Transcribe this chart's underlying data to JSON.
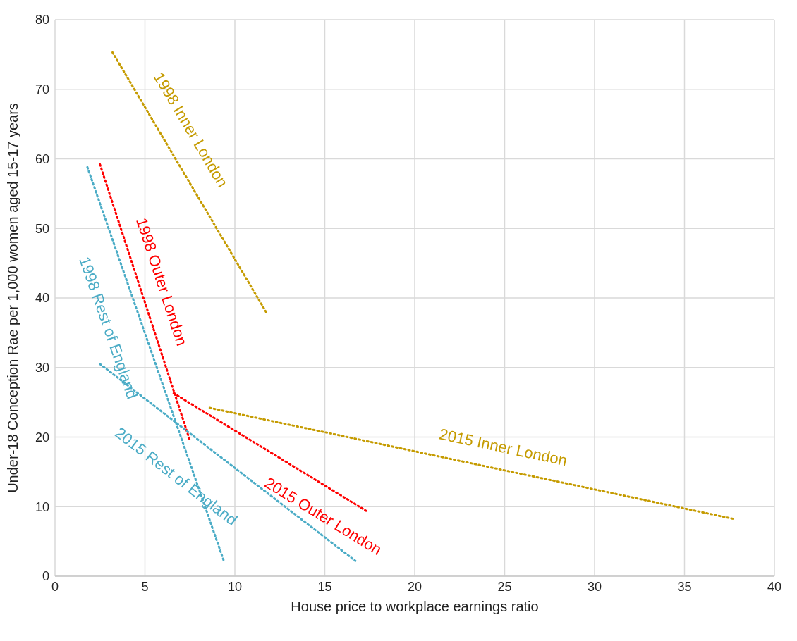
{
  "chart_data": {
    "type": "line",
    "xlabel": "House price to workplace earnings ratio",
    "ylabel": "Under-18 Conception Rae per 1,000 women aged 15-17 years",
    "xlim": [
      0,
      40
    ],
    "xticks": [
      0,
      5,
      10,
      15,
      20,
      25,
      30,
      35,
      40
    ],
    "ylim": [
      0,
      80
    ],
    "yticks": [
      0,
      10,
      20,
      30,
      40,
      50,
      60,
      70,
      80
    ],
    "grid": true,
    "legend": false,
    "marker": "none",
    "line_style": "dotted",
    "series": [
      {
        "name": "1998 Inner London",
        "color": "#c59b00",
        "x": [
          3.2,
          11.8
        ],
        "values": [
          75.3,
          37.7
        ]
      },
      {
        "name": "1998 Outer London",
        "color": "#ff0000",
        "x": [
          2.5,
          7.5
        ],
        "values": [
          59.2,
          19.5
        ]
      },
      {
        "name": "1998 Rest of England",
        "color": "#4bacc6",
        "x": [
          1.8,
          9.4
        ],
        "values": [
          58.8,
          2.1
        ]
      },
      {
        "name": "2015 Rest of England",
        "color": "#4bacc6",
        "x": [
          2.5,
          16.7
        ],
        "values": [
          30.5,
          2.2
        ]
      },
      {
        "name": "2015 Outer London",
        "color": "#ff0000",
        "x": [
          6.6,
          17.3
        ],
        "values": [
          26.3,
          9.4
        ]
      },
      {
        "name": "2015 Inner London",
        "color": "#c59b00",
        "x": [
          8.6,
          37.8
        ],
        "values": [
          24.2,
          8.2
        ]
      }
    ]
  }
}
